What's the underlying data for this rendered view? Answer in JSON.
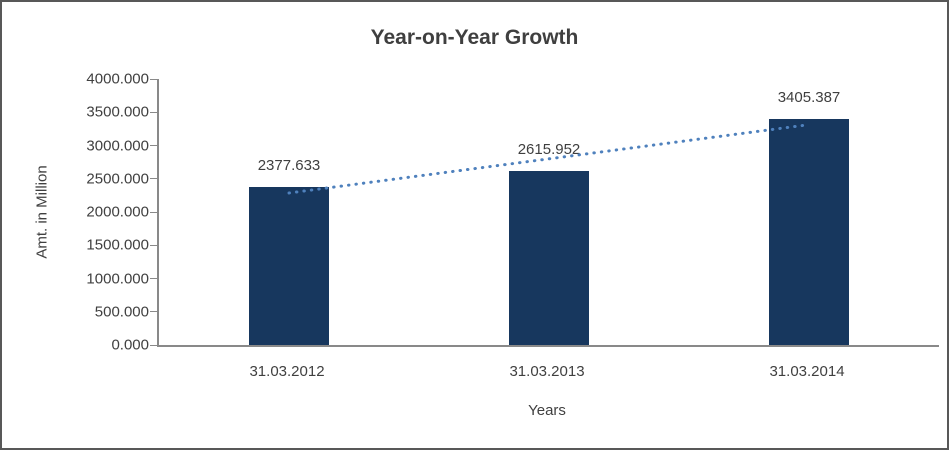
{
  "chart_data": {
    "type": "bar",
    "title": "Year-on-Year Growth",
    "categories": [
      "31.03.2012",
      "31.03.2013",
      "31.03.2014"
    ],
    "values": [
      2377.633,
      2615.952,
      3405.387
    ],
    "data_labels": [
      "2377.633",
      "2615.952",
      "3405.387"
    ],
    "xlabel": "Years",
    "ylabel": "Amt. in Million",
    "ylim": [
      0,
      4000
    ],
    "y_ticks": [
      "0.000",
      "500.000",
      "1000.000",
      "1500.000",
      "2000.000",
      "2500.000",
      "3000.000",
      "3500.000",
      "4000.000"
    ],
    "grid": false,
    "legend": "none",
    "bar_color": "#17375e",
    "trendline": {
      "type": "linear",
      "style": "dotted",
      "color": "#4f81bd"
    }
  }
}
